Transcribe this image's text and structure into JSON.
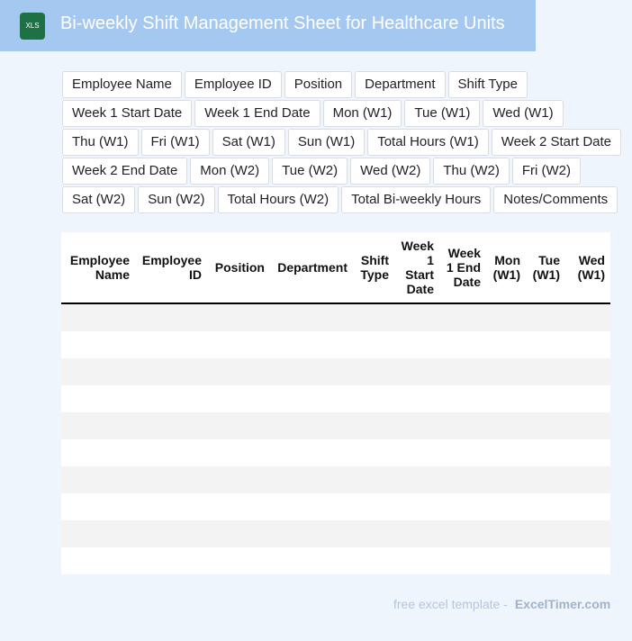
{
  "header": {
    "icon": "XLS",
    "title": "Bi-weekly Shift Management Sheet for Healthcare Units"
  },
  "fields": [
    "Employee Name",
    "Employee ID",
    "Position",
    "Department",
    "Shift Type",
    "Week 1 Start Date",
    "Week 1 End Date",
    "Mon (W1)",
    "Tue (W1)",
    "Wed (W1)",
    "Thu (W1)",
    "Fri (W1)",
    "Sat (W1)",
    "Sun (W1)",
    "Total Hours (W1)",
    "Week 2 Start Date",
    "Week 2 End Date",
    "Mon (W2)",
    "Tue (W2)",
    "Wed (W2)",
    "Thu (W2)",
    "Fri (W2)",
    "Sat (W2)",
    "Sun (W2)",
    "Total Hours (W2)",
    "Total Bi-weekly Hours",
    "Notes/Comments"
  ],
  "table": {
    "columns": [
      "Employee Name",
      "Employee ID",
      "Position",
      "Department",
      "Shift Type",
      "Week 1 Start Date",
      "Week 1 End Date",
      "Mon (W1)",
      "Tue (W1)",
      "Wed (W1)"
    ]
  },
  "footer": {
    "text": "free excel template -",
    "brand": "ExcelTimer.com"
  }
}
